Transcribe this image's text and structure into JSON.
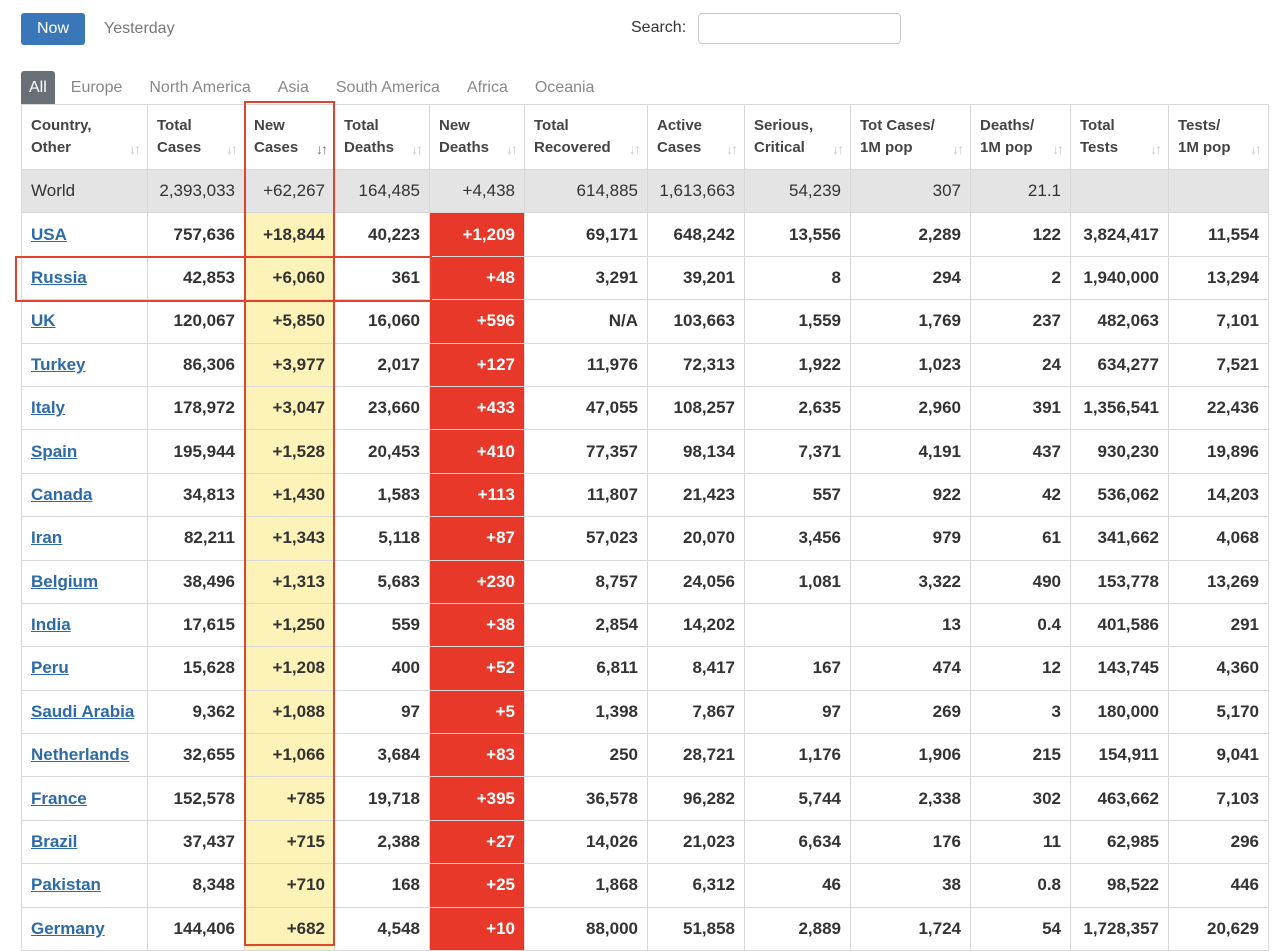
{
  "controls": {
    "now_label": "Now",
    "yesterday_label": "Yesterday",
    "search_label": "Search:",
    "search_value": "",
    "search_placeholder": ""
  },
  "tabs": [
    {
      "label": "All",
      "active": true
    },
    {
      "label": "Europe"
    },
    {
      "label": "North America"
    },
    {
      "label": "Asia"
    },
    {
      "label": "South America"
    },
    {
      "label": "Africa"
    },
    {
      "label": "Oceania"
    }
  ],
  "columns": [
    {
      "line1": "Country,",
      "line2": "Other"
    },
    {
      "line1": "Total",
      "line2": "Cases"
    },
    {
      "line1": "New",
      "line2": "Cases"
    },
    {
      "line1": "Total",
      "line2": "Deaths"
    },
    {
      "line1": "New",
      "line2": "Deaths"
    },
    {
      "line1": "Total",
      "line2": "Recovered"
    },
    {
      "line1": "Active",
      "line2": "Cases"
    },
    {
      "line1": "Serious,",
      "line2": "Critical"
    },
    {
      "line1": "Tot Cases/",
      "line2": "1M pop"
    },
    {
      "line1": "Deaths/",
      "line2": "1M pop"
    },
    {
      "line1": "Total",
      "line2": "Tests"
    },
    {
      "line1": "Tests/",
      "line2": "1M pop"
    }
  ],
  "world": [
    "World",
    "2,393,033",
    "+62,267",
    "164,485",
    "+4,438",
    "614,885",
    "1,613,663",
    "54,239",
    "307",
    "21.1",
    "",
    ""
  ],
  "rows": [
    [
      "USA",
      "757,636",
      "+18,844",
      "40,223",
      "+1,209",
      "69,171",
      "648,242",
      "13,556",
      "2,289",
      "122",
      "3,824,417",
      "11,554"
    ],
    [
      "Russia",
      "42,853",
      "+6,060",
      "361",
      "+48",
      "3,291",
      "39,201",
      "8",
      "294",
      "2",
      "1,940,000",
      "13,294"
    ],
    [
      "UK",
      "120,067",
      "+5,850",
      "16,060",
      "+596",
      "N/A",
      "103,663",
      "1,559",
      "1,769",
      "237",
      "482,063",
      "7,101"
    ],
    [
      "Turkey",
      "86,306",
      "+3,977",
      "2,017",
      "+127",
      "11,976",
      "72,313",
      "1,922",
      "1,023",
      "24",
      "634,277",
      "7,521"
    ],
    [
      "Italy",
      "178,972",
      "+3,047",
      "23,660",
      "+433",
      "47,055",
      "108,257",
      "2,635",
      "2,960",
      "391",
      "1,356,541",
      "22,436"
    ],
    [
      "Spain",
      "195,944",
      "+1,528",
      "20,453",
      "+410",
      "77,357",
      "98,134",
      "7,371",
      "4,191",
      "437",
      "930,230",
      "19,896"
    ],
    [
      "Canada",
      "34,813",
      "+1,430",
      "1,583",
      "+113",
      "11,807",
      "21,423",
      "557",
      "922",
      "42",
      "536,062",
      "14,203"
    ],
    [
      "Iran",
      "82,211",
      "+1,343",
      "5,118",
      "+87",
      "57,023",
      "20,070",
      "3,456",
      "979",
      "61",
      "341,662",
      "4,068"
    ],
    [
      "Belgium",
      "38,496",
      "+1,313",
      "5,683",
      "+230",
      "8,757",
      "24,056",
      "1,081",
      "3,322",
      "490",
      "153,778",
      "13,269"
    ],
    [
      "India",
      "17,615",
      "+1,250",
      "559",
      "+38",
      "2,854",
      "14,202",
      "",
      "13",
      "0.4",
      "401,586",
      "291"
    ],
    [
      "Peru",
      "15,628",
      "+1,208",
      "400",
      "+52",
      "6,811",
      "8,417",
      "167",
      "474",
      "12",
      "143,745",
      "4,360"
    ],
    [
      "Saudi Arabia",
      "9,362",
      "+1,088",
      "97",
      "+5",
      "1,398",
      "7,867",
      "97",
      "269",
      "3",
      "180,000",
      "5,170"
    ],
    [
      "Netherlands",
      "32,655",
      "+1,066",
      "3,684",
      "+83",
      "250",
      "28,721",
      "1,176",
      "1,906",
      "215",
      "154,911",
      "9,041"
    ],
    [
      "France",
      "152,578",
      "+785",
      "19,718",
      "+395",
      "36,578",
      "96,282",
      "5,744",
      "2,338",
      "302",
      "463,662",
      "7,103"
    ],
    [
      "Brazil",
      "37,437",
      "+715",
      "2,388",
      "+27",
      "14,026",
      "21,023",
      "6,634",
      "176",
      "11",
      "62,985",
      "296"
    ],
    [
      "Pakistan",
      "8,348",
      "+710",
      "168",
      "+25",
      "1,868",
      "6,312",
      "46",
      "38",
      "0.8",
      "98,522",
      "446"
    ],
    [
      "Germany",
      "144,406",
      "+682",
      "4,548",
      "+10",
      "88,000",
      "51,858",
      "2,889",
      "1,724",
      "54",
      "1,728,357",
      "20,629"
    ]
  ],
  "colors": {
    "accent": "#3a77b8",
    "new_cases_bg": "#fdf2b8",
    "new_deaths_bg": "#e8382a",
    "highlight_border": "#e0442e"
  }
}
